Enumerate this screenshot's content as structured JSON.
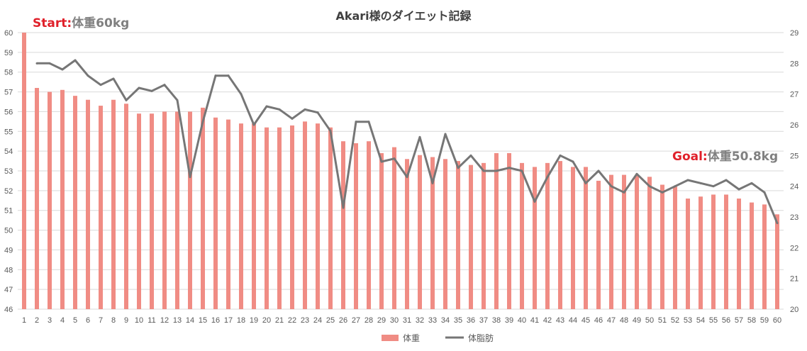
{
  "chart_data": {
    "type": "bar",
    "title": "Akari様のダイエット記録",
    "x": [
      1,
      2,
      3,
      4,
      5,
      6,
      7,
      8,
      9,
      10,
      11,
      12,
      13,
      14,
      15,
      16,
      17,
      18,
      19,
      20,
      21,
      22,
      23,
      24,
      25,
      26,
      27,
      28,
      29,
      30,
      31,
      32,
      33,
      34,
      35,
      36,
      37,
      38,
      39,
      40,
      41,
      42,
      43,
      44,
      45,
      46,
      47,
      48,
      49,
      50,
      51,
      52,
      53,
      54,
      55,
      56,
      57,
      58,
      59,
      60
    ],
    "series": [
      {
        "name": "体重",
        "type": "bar",
        "axis": "left",
        "color": "#f08c84",
        "values": [
          60,
          57.2,
          57,
          57.1,
          56.8,
          56.6,
          56.3,
          56.6,
          56.4,
          55.9,
          55.9,
          56,
          56,
          56,
          56.2,
          55.7,
          55.6,
          55.4,
          55.4,
          55.2,
          55.2,
          55.3,
          55.5,
          55.4,
          55.2,
          54.5,
          54.4,
          54.5,
          53.9,
          54.2,
          53.6,
          53.8,
          53.7,
          53.6,
          53.5,
          53.3,
          53.4,
          53.9,
          53.9,
          53.4,
          53.2,
          53.4,
          53.5,
          53.2,
          53.2,
          52.5,
          52.8,
          52.8,
          52.8,
          52.7,
          52.3,
          52.2,
          51.6,
          51.7,
          51.8,
          51.8,
          51.6,
          51.4,
          51.3,
          50.8
        ]
      },
      {
        "name": "体脂肪",
        "type": "line",
        "axis": "right",
        "color": "#767676",
        "values": [
          null,
          28,
          28,
          27.8,
          28.1,
          27.6,
          27.3,
          27.5,
          26.8,
          27.2,
          27.1,
          27.3,
          26.8,
          24.3,
          26.1,
          27.6,
          27.6,
          27,
          26,
          26.6,
          26.5,
          26.2,
          26.5,
          26.4,
          25.8,
          23.3,
          26.1,
          26.1,
          24.8,
          24.9,
          24.3,
          25.6,
          24.1,
          25.7,
          24.6,
          25,
          24.5,
          24.5,
          24.6,
          24.5,
          23.5,
          24.3,
          25,
          24.8,
          24.1,
          24.5,
          24,
          23.8,
          24.4,
          24,
          23.8,
          24,
          24.2,
          24.1,
          24,
          24.2,
          23.9,
          24.1,
          23.8,
          22.8
        ]
      }
    ],
    "y_left": {
      "ylim": [
        46,
        60
      ],
      "ticks": [
        46,
        47,
        48,
        49,
        50,
        51,
        52,
        53,
        54,
        55,
        56,
        57,
        58,
        59,
        60
      ]
    },
    "y_right": {
      "ylim": [
        20,
        29
      ],
      "ticks": [
        20,
        21,
        22,
        23,
        24,
        25,
        26,
        27,
        28,
        29
      ]
    },
    "grid": true,
    "legend": {
      "placement": "bottom",
      "items": [
        "体重",
        "体脂肪"
      ]
    },
    "annotations": [
      {
        "id": "start",
        "label": "Start:",
        "text": "体重60kg",
        "label_color": "#e0202a",
        "text_color": "#808080"
      },
      {
        "id": "goal",
        "label": "Goal:",
        "text": "体重50.8kg",
        "label_color": "#e0202a",
        "text_color": "#808080"
      }
    ]
  }
}
